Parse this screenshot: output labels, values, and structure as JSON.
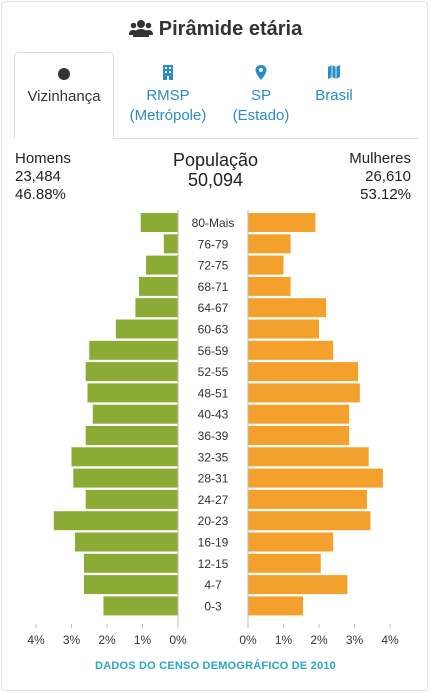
{
  "header": {
    "title": "Pirâmide etária",
    "icon": "users-icon"
  },
  "tabs": [
    {
      "label_1": "Vizinhança",
      "label_2": "",
      "icon": "circle-icon",
      "active": true
    },
    {
      "label_1": "RMSP",
      "label_2": "(Metrópole)",
      "icon": "building-icon",
      "active": false
    },
    {
      "label_1": "SP",
      "label_2": "(Estado)",
      "icon": "map-marker-icon",
      "active": false
    },
    {
      "label_1": "Brasil",
      "label_2": "",
      "icon": "map-icon",
      "active": false
    }
  ],
  "stats": {
    "men_label": "Homens",
    "men_count": "23,484",
    "men_pct": "46.88%",
    "total_label": "População",
    "total_count": "50,094",
    "women_label": "Mulheres",
    "women_count": "26,610",
    "women_pct": "53.12%"
  },
  "footer": "DADOS DO CENSO DEMOGRÁFICO DE 2010",
  "colors": {
    "men": "#8cab35",
    "women": "#f4a02c",
    "tab_link": "#2a8cc8",
    "footer": "#2aa7c4"
  },
  "chart_data": {
    "type": "bar",
    "orientation": "horizontal-pyramid",
    "categories": [
      "80-Mais",
      "76-79",
      "72-75",
      "68-71",
      "64-67",
      "60-63",
      "56-59",
      "52-55",
      "48-51",
      "40-43",
      "36-39",
      "32-35",
      "28-31",
      "24-27",
      "20-23",
      "16-19",
      "12-15",
      "4-7",
      "0-3"
    ],
    "series": [
      {
        "name": "Homens",
        "values": [
          1.05,
          0.4,
          0.9,
          1.1,
          1.2,
          1.75,
          2.5,
          2.6,
          2.55,
          2.4,
          2.6,
          3.0,
          2.95,
          2.6,
          3.5,
          2.9,
          2.65,
          2.65,
          2.1
        ]
      },
      {
        "name": "Mulheres",
        "values": [
          1.9,
          1.2,
          1.0,
          1.2,
          2.2,
          2.0,
          2.4,
          3.1,
          3.15,
          2.85,
          2.85,
          3.4,
          3.8,
          3.35,
          3.45,
          2.4,
          2.05,
          2.8,
          1.55
        ]
      }
    ],
    "x_ticks_left": [
      "4%",
      "3%",
      "2%",
      "1%",
      "0%"
    ],
    "x_ticks_right": [
      "0%",
      "1%",
      "2%",
      "3%",
      "4%"
    ],
    "xlim": [
      0,
      4
    ],
    "grid": false
  }
}
